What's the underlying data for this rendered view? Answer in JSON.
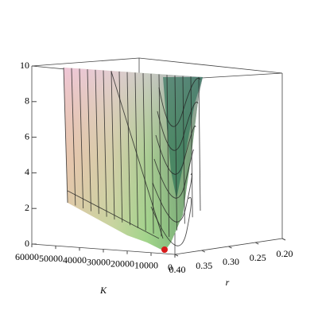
{
  "chart_data": {
    "type": "surface3d",
    "xlabel": "K",
    "ylabel": "r",
    "xlim": [
      60000,
      0
    ],
    "xticks": [
      60000,
      50000,
      40000,
      30000,
      20000,
      10000,
      0
    ],
    "ylim": [
      0.4,
      0.2
    ],
    "yticks": [
      {
        "value": 0.4,
        "label": "0.40"
      },
      {
        "value": 0.35,
        "label": "0.35"
      },
      {
        "value": 0.3,
        "label": "0.30"
      },
      {
        "value": 0.25,
        "label": "0.25"
      },
      {
        "value": 0.2,
        "label": "0.20"
      }
    ],
    "zlim": [
      0,
      10
    ],
    "zticks": [
      0,
      2,
      4,
      6,
      8,
      10
    ]
  }
}
